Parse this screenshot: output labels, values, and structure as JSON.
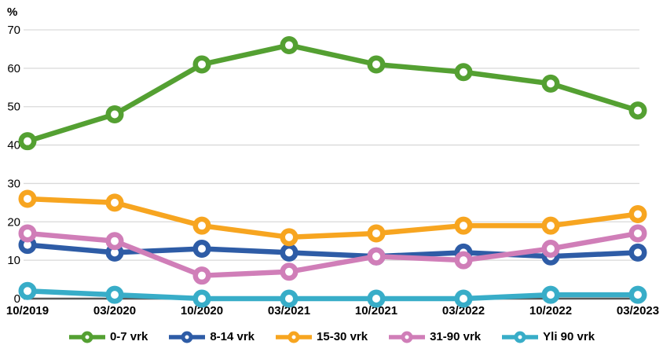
{
  "chart_data": {
    "type": "line",
    "title": "",
    "xlabel": "",
    "ylabel": "%",
    "categories": [
      "10/2019",
      "03/2020",
      "10/2020",
      "03/2021",
      "10/2021",
      "03/2022",
      "10/2022",
      "03/2023"
    ],
    "series": [
      {
        "name": "0-7 vrk",
        "color": "#54a032",
        "values": [
          41,
          48,
          61,
          66,
          61,
          59,
          56,
          49
        ]
      },
      {
        "name": "8-14 vrk",
        "color": "#2e5ca6",
        "values": [
          14,
          12,
          13,
          12,
          11,
          12,
          11,
          12
        ]
      },
      {
        "name": "15-30 vrk",
        "color": "#f7a520",
        "values": [
          26,
          25,
          19,
          16,
          17,
          19,
          19,
          22
        ]
      },
      {
        "name": "31-90 vrk",
        "color": "#d07eb8",
        "values": [
          17,
          15,
          6,
          7,
          11,
          10,
          13,
          17
        ]
      },
      {
        "name": "Yli 90 vrk",
        "color": "#38adc8",
        "values": [
          2,
          1,
          0,
          0,
          0,
          0,
          1,
          1
        ]
      }
    ],
    "ylim": [
      0,
      70
    ],
    "yticks": [
      0,
      10,
      20,
      30,
      40,
      50,
      60,
      70
    ],
    "grid": true,
    "legend_position": "bottom",
    "marker_style": "open-circle"
  },
  "colors": {
    "grid": "#d9d9d9",
    "axis_line": "#595959",
    "text": "#000000",
    "background": "#ffffff"
  }
}
